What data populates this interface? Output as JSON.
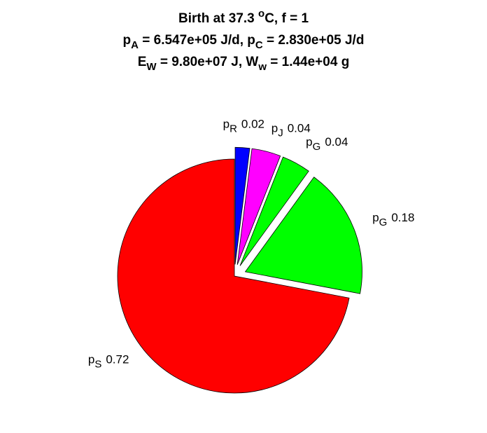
{
  "chart_data": {
    "type": "pie",
    "title": [
      [
        {
          "text": "Birth at 37.3 "
        },
        {
          "text": "o",
          "shift": "sup"
        },
        {
          "text": "C, f = 1"
        }
      ],
      [
        {
          "text": "p"
        },
        {
          "text": "A",
          "shift": "sub"
        },
        {
          "text": " = 6.547e+05 J/d, p"
        },
        {
          "text": "C",
          "shift": "sub"
        },
        {
          "text": " = 2.830e+05 J/d"
        }
      ],
      [
        {
          "text": "E"
        },
        {
          "text": "W",
          "shift": "sub"
        },
        {
          "text": " = 9.80e+07 J, W"
        },
        {
          "text": "w",
          "shift": "sub"
        },
        {
          "text": " = 1.44e+04 g"
        }
      ]
    ],
    "categories": [
      {
        "text": "p",
        "sub": "S"
      },
      {
        "text": "p",
        "sub": "G"
      },
      {
        "text": "p",
        "sub": "G"
      },
      {
        "text": "p",
        "sub": "J"
      },
      {
        "text": "p",
        "sub": "R"
      }
    ],
    "values": [
      0.72,
      0.18,
      0.04,
      0.04,
      0.02
    ],
    "colors": [
      "#ff0000",
      "#00ff00",
      "#00ff00",
      "#ff00ff",
      "#0000ff"
    ],
    "explode": [
      false,
      true,
      true,
      true,
      true
    ]
  }
}
